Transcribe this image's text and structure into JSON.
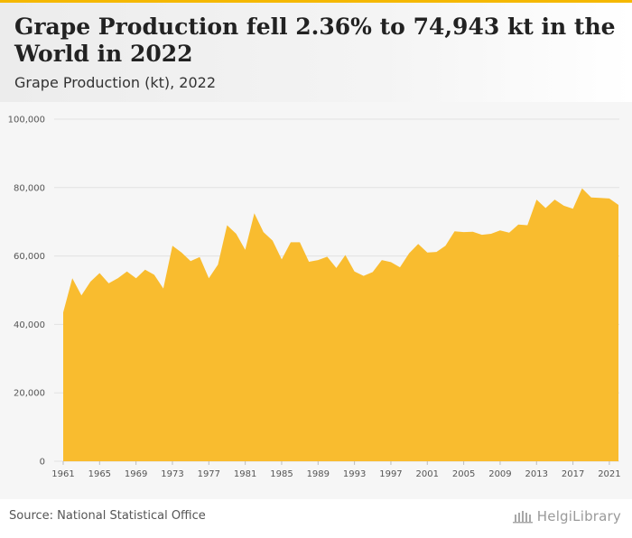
{
  "header": {
    "title": "Grape Production fell 2.36% to 74,943 kt in the World in 2022",
    "subtitle": "Grape Production (kt), 2022"
  },
  "footer": {
    "source": "Source: National Statistical Office",
    "logo": "HelgiLibrary"
  },
  "colors": {
    "accent": "#f5b800",
    "area_fill": "#f9bc2f",
    "background": "#f6f6f6"
  },
  "chart_data": {
    "type": "area",
    "title": "Grape Production fell 2.36% to 74,943 kt in the World in 2022",
    "subtitle": "Grape Production (kt), 2022",
    "xlabel": "",
    "ylabel": "",
    "ylim": [
      0,
      100000
    ],
    "y_ticks": [
      0,
      20000,
      40000,
      60000,
      80000,
      100000
    ],
    "y_tick_labels": [
      "0",
      "20,000",
      "40,000",
      "60,000",
      "80,000",
      "100,000"
    ],
    "x_ticks": [
      1961,
      1965,
      1969,
      1973,
      1977,
      1981,
      1985,
      1989,
      1993,
      1997,
      2001,
      2005,
      2009,
      2013,
      2017,
      2021
    ],
    "grid": true,
    "legend": "none",
    "x": [
      1961,
      1962,
      1963,
      1964,
      1965,
      1966,
      1967,
      1968,
      1969,
      1970,
      1971,
      1972,
      1973,
      1974,
      1975,
      1976,
      1977,
      1978,
      1979,
      1980,
      1981,
      1982,
      1983,
      1984,
      1985,
      1986,
      1987,
      1988,
      1989,
      1990,
      1991,
      1992,
      1993,
      1994,
      1995,
      1996,
      1997,
      1998,
      1999,
      2000,
      2001,
      2002,
      2003,
      2004,
      2005,
      2006,
      2007,
      2008,
      2009,
      2010,
      2011,
      2012,
      2013,
      2014,
      2015,
      2016,
      2017,
      2018,
      2019,
      2020,
      2021,
      2022
    ],
    "series": [
      {
        "values": [
          43500,
          53500,
          48500,
          52500,
          55000,
          52000,
          53500,
          55500,
          53500,
          56000,
          54500,
          50500,
          63000,
          61000,
          58500,
          59700,
          53500,
          57500,
          69000,
          66500,
          61800,
          72500,
          67000,
          64500,
          59000,
          64000,
          64000,
          58300,
          58800,
          59800,
          56500,
          60300,
          55500,
          54200,
          55300,
          58800,
          58200,
          56700,
          60800,
          63500,
          61000,
          61200,
          63000,
          67200,
          67000,
          67100,
          66200,
          66500,
          67500,
          66800,
          69200,
          69000,
          76500,
          74000,
          76500,
          74700,
          73800,
          79800,
          77100,
          77000,
          76800,
          74943
        ]
      }
    ]
  }
}
